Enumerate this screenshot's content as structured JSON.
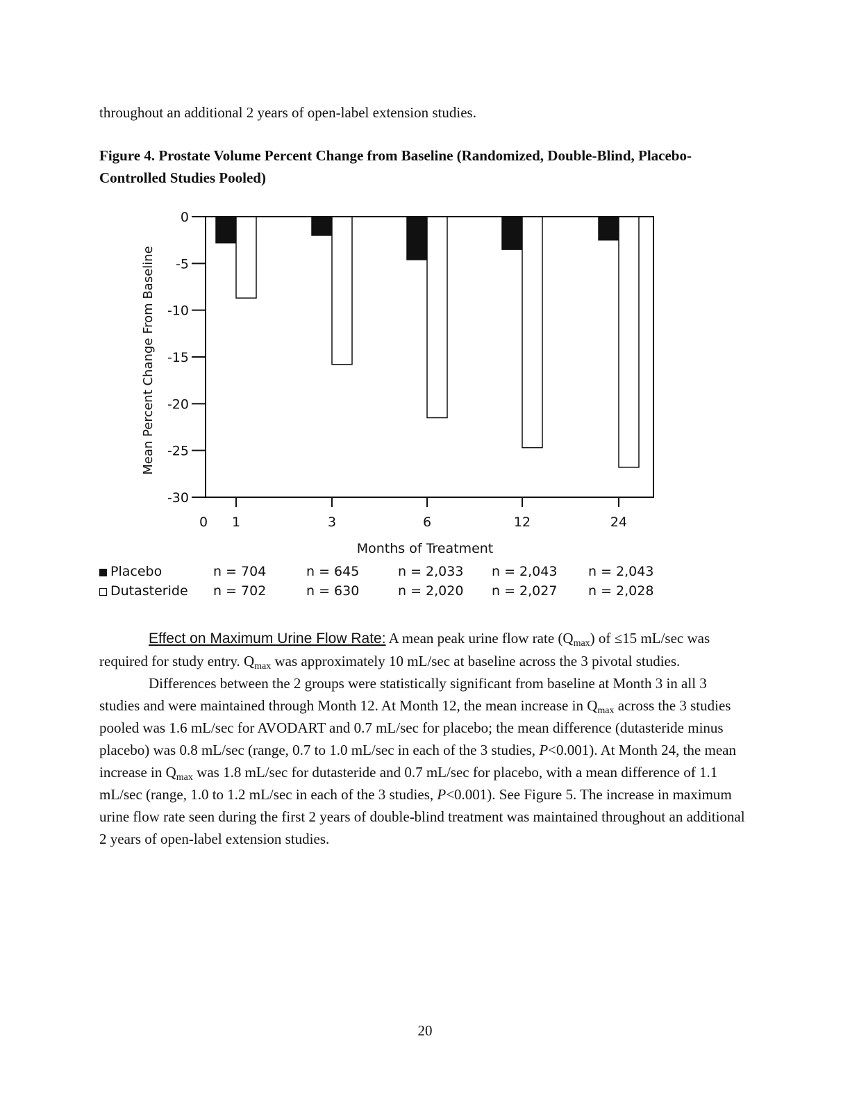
{
  "intro_text": "throughout an additional 2 years of open-label extension studies.",
  "figure_title": "Figure 4. Prostate Volume Percent Change from Baseline (Randomized, Double-Blind, Placebo-Controlled Studies Pooled)",
  "chart_data": {
    "type": "bar",
    "ylabel": "Mean Percent Change From Baseline",
    "xlabel": "Months of Treatment",
    "ylim": [
      -30,
      0
    ],
    "yticks": [
      "0",
      "-5",
      "-10",
      "-15",
      "-20",
      "-25",
      "-30"
    ],
    "xticks": [
      "0",
      "1",
      "3",
      "6",
      "12",
      "24"
    ],
    "categories": [
      "1",
      "3",
      "6",
      "12",
      "24"
    ],
    "series": [
      {
        "name": "Placebo",
        "fill": "#111111",
        "values": [
          -2.8,
          -2.0,
          -4.6,
          -3.5,
          -2.5
        ],
        "n": [
          "n = 704",
          "n = 645",
          "n = 2,033",
          "n = 2,043",
          "n = 2,043"
        ]
      },
      {
        "name": "Dutasteride",
        "fill": "#ffffff",
        "values": [
          -8.7,
          -15.8,
          -21.5,
          -24.7,
          -26.8
        ],
        "n": [
          "n = 702",
          "n = 630",
          "n = 2,020",
          "n = 2,027",
          "n = 2,028"
        ]
      }
    ]
  },
  "section": {
    "heading": "Effect on Maximum Urine Flow Rate:",
    "p1_a": " A mean peak urine flow rate (Q",
    "p1_sub1": "max",
    "p1_b": ") of ≤15 mL/sec was required for study entry. Q",
    "p1_sub2": "max",
    "p1_c": " was approximately 10 mL/sec at baseline across the 3 pivotal studies.",
    "p2_a": "Differences between the 2 groups were statistically significant from baseline at Month 3 in all 3 studies and were maintained through Month 12. At Month 12, the mean increase in Q",
    "p2_sub1": "max",
    "p2_b": " across the 3 studies pooled was 1.6 mL/sec for AVODART and 0.7 mL/sec for placebo; the mean difference (dutasteride minus placebo) was 0.8 mL/sec (range, 0.7 to 1.0 mL/sec in each of the 3 studies, ",
    "p2_italic1": "P",
    "p2_c": "<0.001). At Month 24, the mean increase in Q",
    "p2_sub2": "max",
    "p2_d": " was 1.8 mL/sec for dutasteride and 0.7 mL/sec for placebo, with a mean difference of 1.1 mL/sec (range, 1.0 to 1.2 mL/sec in each of the 3 studies, ",
    "p2_italic2": "P",
    "p2_e": "<0.001). See Figure 5. The increase in maximum urine flow rate seen during the first 2 years of double-blind treatment was maintained throughout an additional 2 years of open-label extension studies."
  },
  "page_number": "20"
}
